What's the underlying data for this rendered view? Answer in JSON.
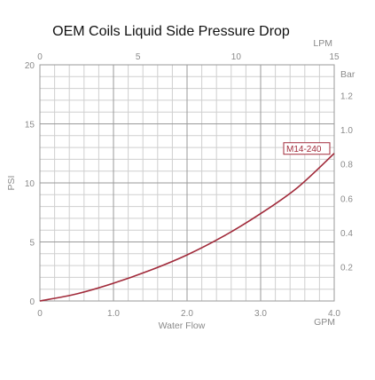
{
  "chart_data": {
    "type": "line",
    "title": "OEM Coils Liquid Side Pressure Drop",
    "xlabel": "Water Flow",
    "x_unit": "GPM",
    "ylabel": "PSI",
    "x_top_unit": "LPM",
    "y_right_unit": "Bar",
    "xlim": [
      0,
      4.0
    ],
    "ylim": [
      0,
      20
    ],
    "x_top_lim": [
      0,
      15
    ],
    "y_right_lim": [
      0,
      1.379
    ],
    "x_ticks": [
      "0",
      "1.0",
      "2.0",
      "3.0",
      "4.0"
    ],
    "y_ticks": [
      "0",
      "5",
      "10",
      "15",
      "20"
    ],
    "x_top_ticks": [
      "0",
      "5",
      "10",
      "15"
    ],
    "y_right_ticks": [
      "0.2",
      "0.4",
      "0.6",
      "0.8",
      "1.0",
      "1.2"
    ],
    "grid": true,
    "series": [
      {
        "name": "M14-240",
        "color": "#a12a3a",
        "x": [
          0,
          0.5,
          1.0,
          1.5,
          2.0,
          2.5,
          3.0,
          3.5,
          4.0
        ],
        "y": [
          0,
          0.6,
          1.5,
          2.6,
          3.9,
          5.5,
          7.4,
          9.6,
          12.5
        ]
      }
    ]
  }
}
